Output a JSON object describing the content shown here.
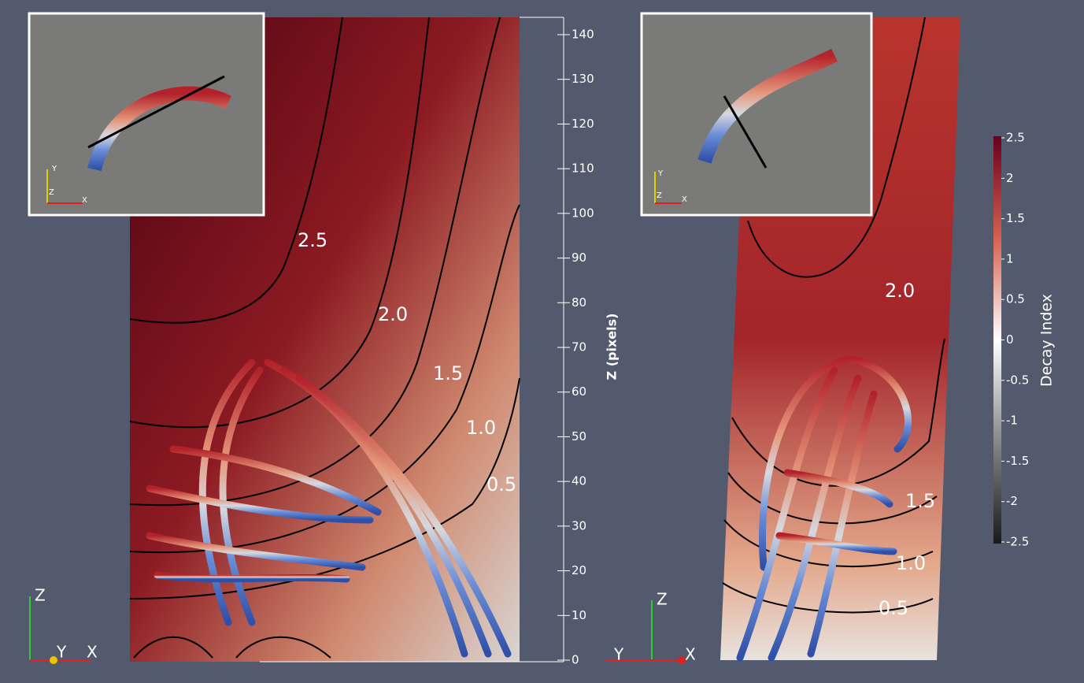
{
  "z_axis": {
    "label": "Z (pixels)",
    "ticks": [
      "0",
      "10",
      "20",
      "30",
      "40",
      "50",
      "60",
      "70",
      "80",
      "90",
      "100",
      "110",
      "120",
      "130",
      "140"
    ]
  },
  "colorbar": {
    "title": "Decay Index",
    "ticks": [
      "2.5",
      "2",
      "1.5",
      "1",
      "0.5",
      "0",
      "-0.5",
      "-1",
      "-1.5",
      "-2",
      "-2.5"
    ]
  },
  "left_panel": {
    "contour_labels": [
      "2.5",
      "2.0",
      "1.5",
      "1.0",
      "0.5"
    ],
    "triad": [
      "Z",
      "Y",
      "X"
    ],
    "inset_triad": [
      "Y",
      "Z",
      "X"
    ]
  },
  "right_panel": {
    "contour_labels": [
      "2.0",
      "1.5",
      "1.0",
      "0.5"
    ],
    "triad": [
      "Z",
      "Y",
      "X"
    ],
    "inset_triad": [
      "Y",
      "Z",
      "X"
    ]
  }
}
